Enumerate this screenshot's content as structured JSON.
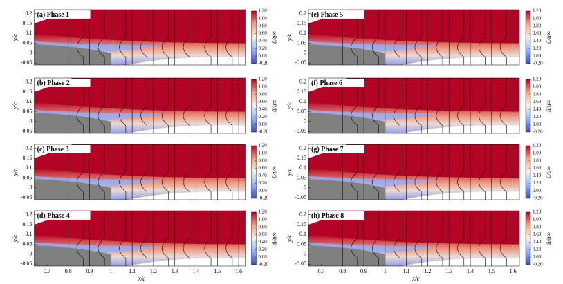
{
  "chart_data": [
    {
      "type": "field",
      "title": "(a) Phase 1",
      "ylabel": "y/c",
      "colorbar_label": "ū/u∞",
      "xlim": [
        0.64,
        1.65
      ],
      "ylim": [
        -0.06,
        0.22
      ],
      "yticks": [
        -0.05,
        0,
        0.05,
        0.1,
        0.15,
        0.2
      ],
      "clim": [
        -0.2,
        1.2
      ],
      "cticks": [
        {
          "value": -0.2,
          "label": "-0.20"
        },
        {
          "value": 0,
          "label": "0.00"
        },
        {
          "value": 0.2,
          "label": "0.20"
        },
        {
          "value": 0.4,
          "label": "0.40"
        },
        {
          "value": 0.6,
          "label": "0.60"
        },
        {
          "value": 0.8,
          "label": "0.80"
        },
        {
          "value": 1.0,
          "label": "1.00"
        },
        {
          "value": 1.2,
          "label": "1.20"
        }
      ],
      "colormap": [
        "#3b4cc0",
        "#8db0fe",
        "#f2f0e6",
        "#f6a385",
        "#b40426"
      ]
    },
    {
      "type": "field",
      "title": "(b) Phase 2",
      "ylabel": "y/c",
      "colorbar_label": "ū/u∞",
      "xlim": [
        0.64,
        1.65
      ],
      "ylim": [
        -0.06,
        0.22
      ],
      "yticks": [
        -0.05,
        0,
        0.05,
        0.1,
        0.15,
        0.2
      ],
      "clim": [
        -0.2,
        1.2
      ],
      "cticks": [
        {
          "value": -0.2,
          "label": "-0.20"
        },
        {
          "value": 0,
          "label": "0.00"
        },
        {
          "value": 0.2,
          "label": "0.20"
        },
        {
          "value": 0.4,
          "label": "0.40"
        },
        {
          "value": 0.6,
          "label": "0.60"
        },
        {
          "value": 0.8,
          "label": "0.80"
        },
        {
          "value": 1.0,
          "label": "1.00"
        },
        {
          "value": 1.2,
          "label": "1.20"
        }
      ],
      "colormap": [
        "#3b4cc0",
        "#8db0fe",
        "#f2f0e6",
        "#f6a385",
        "#b40426"
      ]
    },
    {
      "type": "field",
      "title": "(c) Phase 3",
      "ylabel": "y/c",
      "colorbar_label": "ū/u∞",
      "xlim": [
        0.64,
        1.65
      ],
      "ylim": [
        -0.06,
        0.22
      ],
      "yticks": [
        -0.05,
        0,
        0.05,
        0.1,
        0.15,
        0.2
      ],
      "clim": [
        -0.2,
        1.2
      ],
      "cticks": [
        {
          "value": -0.2,
          "label": "-0.20"
        },
        {
          "value": 0,
          "label": "0.00"
        },
        {
          "value": 0.2,
          "label": "0.20"
        },
        {
          "value": 0.4,
          "label": "0.40"
        },
        {
          "value": 0.6,
          "label": "0.60"
        },
        {
          "value": 0.8,
          "label": "0.80"
        },
        {
          "value": 1.0,
          "label": "1.00"
        },
        {
          "value": 1.2,
          "label": "1.20"
        }
      ],
      "colormap": [
        "#3b4cc0",
        "#8db0fe",
        "#f2f0e6",
        "#f6a385",
        "#b40426"
      ]
    },
    {
      "type": "field",
      "title": "(d) Phase 4",
      "ylabel": "y/c",
      "xlabel": "x/c",
      "colorbar_label": "ū/u∞",
      "xlim": [
        0.64,
        1.65
      ],
      "xticks": [
        0.7,
        0.8,
        0.9,
        1,
        1.1,
        1.2,
        1.3,
        1.4,
        1.5,
        1.6
      ],
      "ylim": [
        -0.06,
        0.22
      ],
      "yticks": [
        -0.05,
        0,
        0.05,
        0.1,
        0.15,
        0.2
      ],
      "clim": [
        -0.2,
        1.2
      ],
      "cticks": [
        {
          "value": -0.2,
          "label": "-0.20"
        },
        {
          "value": 0,
          "label": "0.00"
        },
        {
          "value": 0.2,
          "label": "0.20"
        },
        {
          "value": 0.4,
          "label": "0.40"
        },
        {
          "value": 0.6,
          "label": "0.60"
        },
        {
          "value": 0.8,
          "label": "0.80"
        },
        {
          "value": 1.0,
          "label": "1.00"
        },
        {
          "value": 1.2,
          "label": "1.20"
        }
      ],
      "colormap": [
        "#3b4cc0",
        "#8db0fe",
        "#f2f0e6",
        "#f6a385",
        "#b40426"
      ]
    },
    {
      "type": "field",
      "title": "(e) Phase 5",
      "ylabel": "y/c",
      "colorbar_label": "ũ/u∞",
      "xlim": [
        0.64,
        1.65
      ],
      "ylim": [
        -0.06,
        0.22
      ],
      "yticks": [
        -0.05,
        0,
        0.05,
        0.1,
        0.15,
        0.2
      ],
      "clim": [
        -0.2,
        1.2
      ],
      "cticks": [
        {
          "value": -0.2,
          "label": "-0.20"
        },
        {
          "value": 0,
          "label": "0.00"
        },
        {
          "value": 0.2,
          "label": "0.20"
        },
        {
          "value": 0.4,
          "label": "0.40"
        },
        {
          "value": 0.6,
          "label": "0.60"
        },
        {
          "value": 0.8,
          "label": "0.80"
        },
        {
          "value": 1.0,
          "label": "1.00"
        },
        {
          "value": 1.2,
          "label": "1.20"
        }
      ],
      "colormap": [
        "#3b4cc0",
        "#8db0fe",
        "#f2f0e6",
        "#f6a385",
        "#b40426"
      ]
    },
    {
      "type": "field",
      "title": "(f) Phase 6",
      "ylabel": "y/c",
      "colorbar_label": "ũ/u∞",
      "xlim": [
        0.64,
        1.65
      ],
      "ylim": [
        -0.06,
        0.22
      ],
      "yticks": [
        -0.05,
        0,
        0.05,
        0.1,
        0.15,
        0.2
      ],
      "clim": [
        -0.2,
        1.2
      ],
      "cticks": [
        {
          "value": -0.2,
          "label": "-0.20"
        },
        {
          "value": 0,
          "label": "0.00"
        },
        {
          "value": 0.2,
          "label": "0.20"
        },
        {
          "value": 0.4,
          "label": "0.40"
        },
        {
          "value": 0.6,
          "label": "0.60"
        },
        {
          "value": 0.8,
          "label": "0.80"
        },
        {
          "value": 1.0,
          "label": "1.00"
        },
        {
          "value": 1.2,
          "label": "1.20"
        }
      ],
      "colormap": [
        "#3b4cc0",
        "#8db0fe",
        "#f2f0e6",
        "#f6a385",
        "#b40426"
      ]
    },
    {
      "type": "field",
      "title": "(g) Phase 7",
      "ylabel": "y/c",
      "colorbar_label": "ũ/u∞",
      "xlim": [
        0.64,
        1.65
      ],
      "ylim": [
        -0.06,
        0.22
      ],
      "yticks": [
        -0.05,
        0,
        0.05,
        0.1,
        0.15,
        0.2
      ],
      "clim": [
        -0.2,
        1.2
      ],
      "cticks": [
        {
          "value": -0.2,
          "label": "-0.20"
        },
        {
          "value": 0,
          "label": "0.00"
        },
        {
          "value": 0.2,
          "label": "0.20"
        },
        {
          "value": 0.4,
          "label": "0.40"
        },
        {
          "value": 0.6,
          "label": "0.60"
        },
        {
          "value": 0.8,
          "label": "0.80"
        },
        {
          "value": 1.0,
          "label": "1.00"
        },
        {
          "value": 1.2,
          "label": "1.20"
        }
      ],
      "colormap": [
        "#3b4cc0",
        "#8db0fe",
        "#f2f0e6",
        "#f6a385",
        "#b40426"
      ]
    },
    {
      "type": "field",
      "title": "(h) Phase 8",
      "ylabel": "y/c",
      "xlabel": "x/c",
      "colorbar_label": "ũ/u∞",
      "xlim": [
        0.64,
        1.65
      ],
      "xticks": [
        0.7,
        0.8,
        0.9,
        1,
        1.1,
        1.2,
        1.3,
        1.4,
        1.5,
        1.6
      ],
      "ylim": [
        -0.06,
        0.22
      ],
      "yticks": [
        -0.05,
        0,
        0.05,
        0.1,
        0.15,
        0.2
      ],
      "clim": [
        -0.2,
        1.2
      ],
      "cticks": [
        {
          "value": -0.2,
          "label": "-0.20"
        },
        {
          "value": 0,
          "label": "0.00"
        },
        {
          "value": 0.2,
          "label": "0.20"
        },
        {
          "value": 0.4,
          "label": "0.40"
        },
        {
          "value": 0.6,
          "label": "0.60"
        },
        {
          "value": 0.8,
          "label": "0.80"
        },
        {
          "value": 1.0,
          "label": "1.00"
        },
        {
          "value": 1.2,
          "label": "1.20"
        }
      ],
      "colormap": [
        "#3b4cc0",
        "#8db0fe",
        "#f2f0e6",
        "#f6a385",
        "#b40426"
      ]
    }
  ]
}
